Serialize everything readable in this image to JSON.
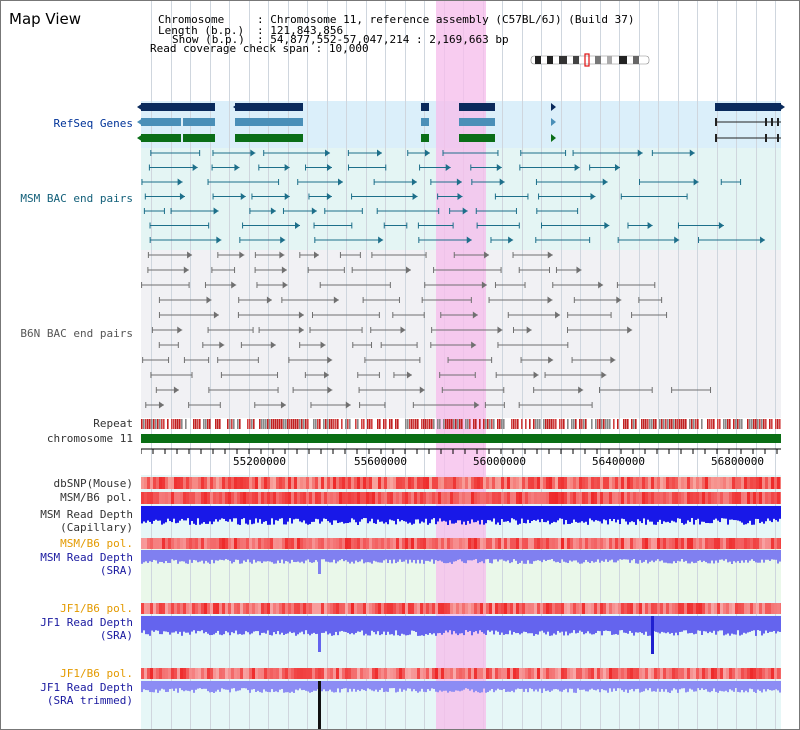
{
  "page_title": "Map View",
  "info": {
    "chromosome_label": "Chromosome",
    "chromosome_value": "Chromosome 11, reference assembly (C57BL/6J) (Build 37)",
    "length_label": "Length (b.p.)",
    "length_value": "121,843,856",
    "show_label": "Show (b.p.)",
    "show_value": "54,877,552-57,047,214 : 2,169,663 bp",
    "coverage_label": "Read coverage check span",
    "coverage_value": "10,000"
  },
  "tracks": {
    "refseq": "RefSeq Genes",
    "msm_bac": "MSM BAC end pairs",
    "b6n_bac": "B6N BAC end pairs",
    "repeat": "Repeat",
    "chromosome": "chromosome 11",
    "dbsnp": "dbSNP(Mouse)",
    "msm_b6_pol": "MSM/B6 pol.",
    "msm_rd_cap_1": "MSM Read Depth",
    "msm_rd_cap_2": "(Capillary)",
    "msm_b6_pol_2": "MSM/B6 pol.",
    "msm_rd_sra_1": "MSM Read Depth",
    "msm_rd_sra_2": "(SRA)",
    "jf1_b6_pol": "JF1/B6 pol.",
    "jf1_rd_sra_1": "JF1 Read Depth",
    "jf1_rd_sra_2": "(SRA)",
    "jf1_b6_pol_2": "JF1/B6 pol.",
    "jf1_rd_trim_1": "JF1 Read Depth",
    "jf1_rd_trim_2": "(SRA trimmed)"
  },
  "axis_ticks": [
    "55200000",
    "55600000",
    "56000000",
    "56400000",
    "56800000"
  ],
  "colors": {
    "gene_navy": "#0a2a5c",
    "gene_steel": "#4a8fb8",
    "gene_green": "#0a6e18",
    "chromosome_bar": "#0a6e14",
    "highlight": "#f6bdec",
    "depth_blue": "#1010e0",
    "depth_light": "#8080f0",
    "snp_red": "#f04040"
  }
}
